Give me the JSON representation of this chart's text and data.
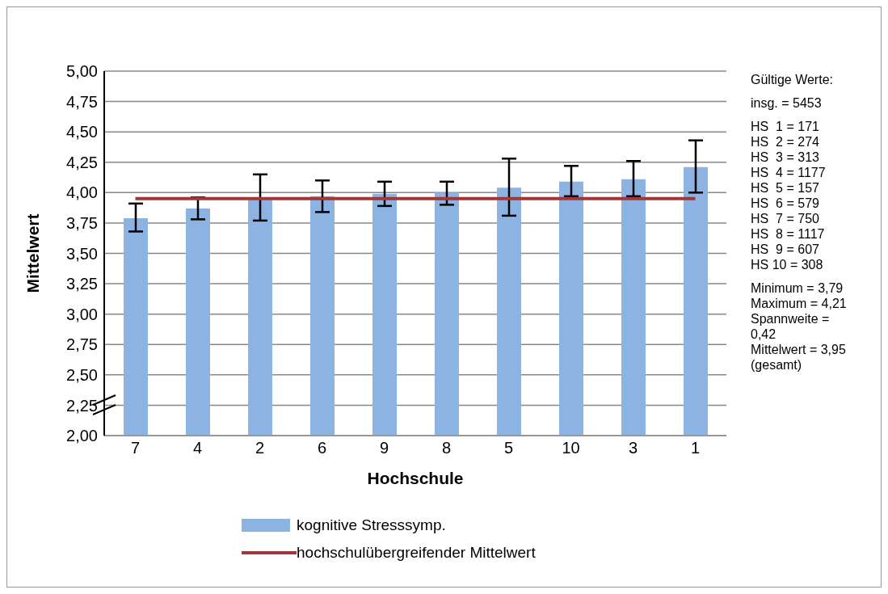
{
  "chart_data": {
    "type": "bar",
    "xlabel": "Hochschule",
    "ylabel": "Mittelwert",
    "categories": [
      "7",
      "4",
      "2",
      "6",
      "9",
      "8",
      "5",
      "10",
      "3",
      "1"
    ],
    "series": [
      {
        "name": "kognitive Stresssymp.",
        "color": "#8db3e2",
        "values": [
          3.79,
          3.87,
          3.96,
          3.97,
          3.99,
          4.0,
          4.04,
          4.09,
          4.11,
          4.21
        ],
        "errors": [
          [
            3.68,
            3.91
          ],
          [
            3.78,
            3.96
          ],
          [
            3.77,
            4.15
          ],
          [
            3.84,
            4.1
          ],
          [
            3.89,
            4.09
          ],
          [
            3.9,
            4.09
          ],
          [
            3.81,
            4.28
          ],
          [
            3.97,
            4.22
          ],
          [
            3.97,
            4.26
          ],
          [
            4.0,
            4.43
          ]
        ]
      },
      {
        "name": "hochschulübergreifender Mittelwert",
        "type": "line",
        "color": "#a0383a",
        "values": [
          3.95,
          3.95,
          3.95,
          3.95,
          3.95,
          3.95,
          3.95,
          3.95,
          3.95,
          3.95
        ]
      }
    ],
    "ylim": [
      2,
      5
    ],
    "yticks": [
      {
        "value": 2,
        "label": "2,00"
      },
      {
        "value": 2.25,
        "label": "2,25"
      },
      {
        "value": 2.5,
        "label": "2,50"
      },
      {
        "value": 2.75,
        "label": "2,75"
      },
      {
        "value": 3,
        "label": "3,00"
      },
      {
        "value": 3.25,
        "label": "3,25"
      },
      {
        "value": 3.5,
        "label": "3,50"
      },
      {
        "value": 3.75,
        "label": "3,75"
      },
      {
        "value": 4,
        "label": "4,00"
      },
      {
        "value": 4.25,
        "label": "4,25"
      },
      {
        "value": 4.5,
        "label": "4,50"
      },
      {
        "value": 4.75,
        "label": "4,75"
      },
      {
        "value": 5,
        "label": "5,00"
      }
    ],
    "grid": "y",
    "legend": "bottom",
    "marker": "none",
    "annotations": [
      "Gültige Werte:",
      "insg. = 5453",
      "HS  1 = 171",
      "HS  2 = 274",
      "HS  3 = 313",
      "HS  4 = 1177",
      "HS  5 = 157",
      "HS  6 = 579",
      "HS  7 = 750",
      "HS  8 = 1117",
      "HS  9 = 607",
      "HS 10 = 308",
      "Minimum = 3,79",
      "Maximum = 4,21",
      "Spannweite = 0,42",
      "Mittelwert = 3,95 (gesamt)"
    ]
  }
}
